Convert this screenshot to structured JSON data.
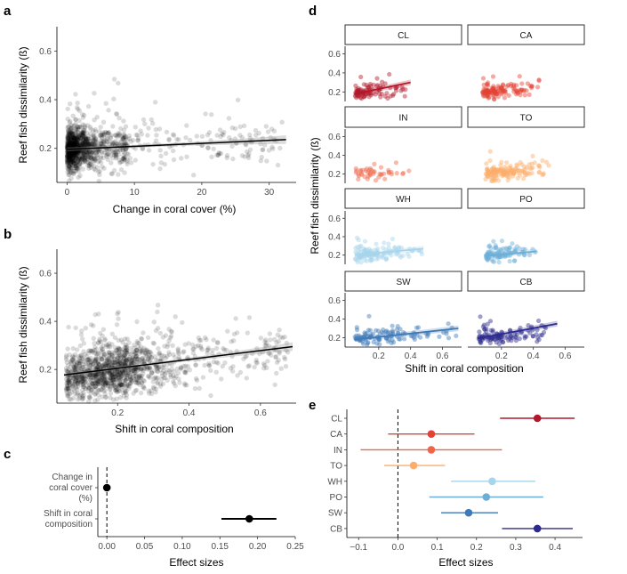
{
  "panels": {
    "a": {
      "letter": "a",
      "chart_data": {
        "type": "scatter",
        "xlabel": "Change in coral cover (%)",
        "ylabel": "Reef fish dissimilarity (ß)",
        "xlim": [
          -1.5,
          34
        ],
        "ylim": [
          0.06,
          0.7
        ],
        "xticks": [
          0,
          10,
          20,
          30
        ],
        "yticks": [
          0.2,
          0.4,
          0.6
        ],
        "trend": {
          "x": [
            0,
            32.5
          ],
          "y": [
            0.196,
            0.236
          ]
        },
        "n_points": 1200
      }
    },
    "b": {
      "letter": "b",
      "chart_data": {
        "type": "scatter",
        "xlabel": "Shift in coral composition",
        "ylabel": "Reef fish dissimilarity (ß)",
        "xlim": [
          0.03,
          0.7
        ],
        "ylim": [
          0.06,
          0.7
        ],
        "xticks": [
          0.2,
          0.4,
          0.6
        ],
        "yticks": [
          0.2,
          0.4,
          0.6
        ],
        "trend": {
          "x": [
            0.05,
            0.69
          ],
          "y": [
            0.177,
            0.295
          ]
        },
        "n_points": 1300
      }
    },
    "c": {
      "letter": "c",
      "chart_data": {
        "type": "dot-interval",
        "xlabel": "Effect sizes",
        "xlim": [
          -0.012,
          0.25
        ],
        "xticks": [
          0.0,
          0.05,
          0.1,
          0.15,
          0.2,
          0.25
        ],
        "xtick_labels": [
          "0.00",
          "0.05",
          "0.10",
          "0.15",
          "0.20",
          "0.25"
        ],
        "rows": [
          {
            "label": [
              "Change in",
              "coral cover",
              "(%)"
            ],
            "estimate": 0.0,
            "low": -0.001,
            "high": 0.001
          },
          {
            "label": [
              "Shift in coral",
              "composition"
            ],
            "estimate": 0.189,
            "low": 0.152,
            "high": 0.225
          }
        ]
      }
    },
    "d": {
      "letter": "d",
      "chart_data": {
        "type": "scatter-facets",
        "xlabel": "Shift in coral composition",
        "ylabel": "Reef fish dissimilarity (ß)",
        "xlim": [
          0.0,
          0.72
        ],
        "ylim": [
          0.1,
          0.68
        ],
        "xticks": [
          0.2,
          0.4,
          0.6
        ],
        "yticks": [
          0.2,
          0.4,
          0.6
        ],
        "facets": [
          {
            "label": "CL",
            "color": "#b2182b",
            "n": 90,
            "xr": [
              0.05,
              0.45
            ],
            "trend": [
              [
                0.05,
                0.18
              ],
              [
                0.4,
                0.3
              ]
            ]
          },
          {
            "label": "CA",
            "color": "#e34234",
            "n": 120,
            "xr": [
              0.08,
              0.45
            ],
            "trend": null
          },
          {
            "label": "IN",
            "color": "#ef6548",
            "n": 45,
            "xr": [
              0.05,
              0.45
            ],
            "trend": null
          },
          {
            "label": "TO",
            "color": "#fdae6b",
            "n": 150,
            "xr": [
              0.1,
              0.5
            ],
            "trend": null
          },
          {
            "label": "WH",
            "color": "#a6d5ec",
            "n": 130,
            "xr": [
              0.05,
              0.5
            ],
            "trend": [
              [
                0.05,
                0.2
              ],
              [
                0.48,
                0.27
              ]
            ]
          },
          {
            "label": "PO",
            "color": "#6baed6",
            "n": 90,
            "xr": [
              0.1,
              0.42
            ],
            "trend": [
              [
                0.1,
                0.19
              ],
              [
                0.42,
                0.24
              ]
            ]
          },
          {
            "label": "SW",
            "color": "#3e79b8",
            "n": 110,
            "xr": [
              0.05,
              0.7
            ],
            "trend": [
              [
                0.05,
                0.18
              ],
              [
                0.7,
                0.3
              ]
            ]
          },
          {
            "label": "CB",
            "color": "#2c2a8c",
            "n": 110,
            "xr": [
              0.05,
              0.55
            ],
            "trend": [
              [
                0.05,
                0.19
              ],
              [
                0.55,
                0.35
              ]
            ]
          }
        ]
      }
    },
    "e": {
      "letter": "e",
      "chart_data": {
        "type": "dot-interval",
        "xlabel": "Effect sizes",
        "xlim": [
          -0.13,
          0.47
        ],
        "xticks": [
          -0.1,
          0.0,
          0.1,
          0.2,
          0.3,
          0.4
        ],
        "xtick_labels": [
          "−0.1",
          "0.0",
          "0.1",
          "0.2",
          "0.3",
          "0.4"
        ],
        "rows": [
          {
            "label": "CL",
            "color": "#b2182b",
            "estimate": 0.355,
            "low": 0.26,
            "high": 0.45
          },
          {
            "label": "CA",
            "color": "#e34234",
            "estimate": 0.085,
            "low": -0.025,
            "high": 0.195
          },
          {
            "label": "IN",
            "color": "#ef6548",
            "estimate": 0.085,
            "low": -0.095,
            "high": 0.265
          },
          {
            "label": "TO",
            "color": "#fdae6b",
            "estimate": 0.04,
            "low": -0.035,
            "high": 0.12
          },
          {
            "label": "WH",
            "color": "#a6d5ec",
            "estimate": 0.24,
            "low": 0.135,
            "high": 0.35
          },
          {
            "label": "PO",
            "color": "#6baed6",
            "estimate": 0.225,
            "low": 0.08,
            "high": 0.37
          },
          {
            "label": "SW",
            "color": "#3e79b8",
            "estimate": 0.18,
            "low": 0.11,
            "high": 0.255
          },
          {
            "label": "CB",
            "color": "#2c2a8c",
            "estimate": 0.355,
            "low": 0.265,
            "high": 0.445
          }
        ]
      }
    }
  }
}
